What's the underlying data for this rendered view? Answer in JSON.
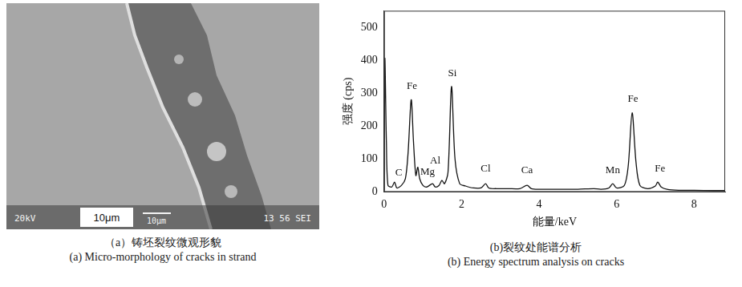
{
  "micrograph": {
    "labels": [
      "20kV",
      "10μm",
      "10μm",
      "13 56 SEI"
    ],
    "caption": [
      "（a）铸坯裂纹微观形貌",
      "(a) Micro-morphology of cracks in strand"
    ]
  },
  "chart_data": {
    "type": "line",
    "caption": [
      "(b)裂纹处能谱分析",
      "(b) Energy spectrum analysis on cracks"
    ],
    "x_label": "能量/keV",
    "y_label": "强度 (cps)",
    "x": [
      0,
      0.02,
      0.06,
      0.1,
      0.2,
      0.27,
      0.33,
      0.45,
      0.55,
      0.62,
      0.7,
      0.76,
      0.82,
      0.87,
      0.92,
      1.0,
      1.1,
      1.25,
      1.32,
      1.42,
      1.49,
      1.56,
      1.65,
      1.74,
      1.83,
      1.95,
      2.1,
      2.3,
      2.5,
      2.62,
      2.7,
      2.9,
      3.2,
      3.5,
      3.69,
      3.8,
      4.0,
      4.5,
      5.0,
      5.41,
      5.6,
      5.8,
      5.9,
      6.0,
      6.2,
      6.3,
      6.4,
      6.5,
      6.6,
      6.8,
      7.0,
      7.06,
      7.15,
      7.3,
      7.6,
      8.0,
      8.5,
      8.8
    ],
    "values": [
      5,
      405,
      150,
      20,
      15,
      30,
      12,
      20,
      40,
      120,
      280,
      150,
      50,
      75,
      40,
      20,
      15,
      25,
      15,
      20,
      35,
      25,
      60,
      320,
      100,
      25,
      18,
      12,
      12,
      25,
      12,
      10,
      10,
      10,
      20,
      10,
      8,
      8,
      8,
      10,
      8,
      12,
      25,
      12,
      20,
      80,
      240,
      90,
      20,
      10,
      18,
      30,
      15,
      8,
      5,
      5,
      4,
      4
    ],
    "color": "#111111",
    "xlim": [
      0,
      8.8
    ],
    "xticks": [
      0,
      2,
      4,
      6,
      8
    ],
    "ylim": [
      0,
      550
    ],
    "yticks": [
      0,
      100,
      200,
      300,
      400,
      500
    ],
    "grid": false,
    "annotations": [
      {
        "text": "C",
        "x": 0.38,
        "y": 42
      },
      {
        "text": "Fe",
        "x": 0.72,
        "y": 305
      },
      {
        "text": "Mg",
        "x": 1.12,
        "y": 45
      },
      {
        "text": "Al",
        "x": 1.32,
        "y": 78
      },
      {
        "text": "Si",
        "x": 1.76,
        "y": 345
      },
      {
        "text": "Cl",
        "x": 2.62,
        "y": 55
      },
      {
        "text": "Ca",
        "x": 3.69,
        "y": 50
      },
      {
        "text": "Mn",
        "x": 5.9,
        "y": 50
      },
      {
        "text": "Fe",
        "x": 6.42,
        "y": 265
      },
      {
        "text": "Fe",
        "x": 7.12,
        "y": 55
      }
    ]
  }
}
